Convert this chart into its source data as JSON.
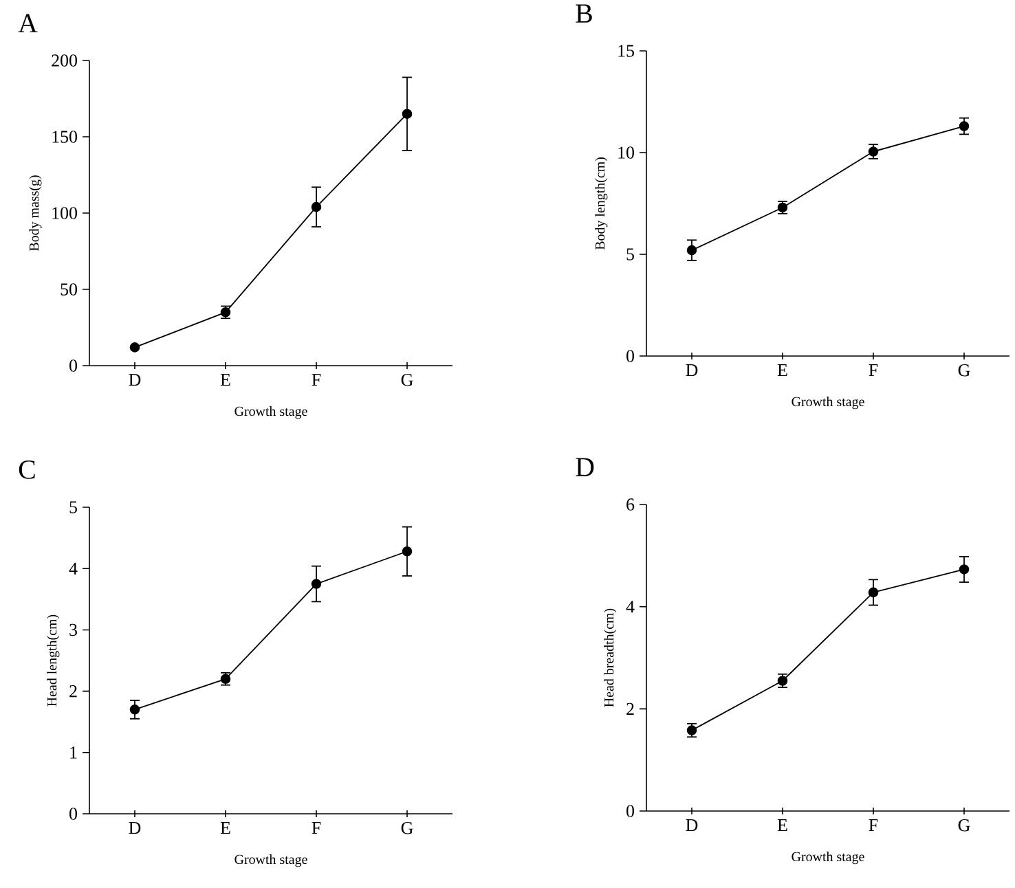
{
  "chart_data": [
    {
      "type": "line",
      "title": "A",
      "xlabel": "Growth stage",
      "ylabel": "Body mass(g)",
      "categories": [
        "D",
        "E",
        "F",
        "G"
      ],
      "values": [
        12,
        35,
        104,
        165
      ],
      "errors": [
        null,
        4,
        13,
        24
      ],
      "color": "#000000",
      "marker": "circle",
      "ylim": [
        0,
        200
      ],
      "yticks": [
        0,
        50,
        100,
        150,
        200
      ]
    },
    {
      "type": "line",
      "title": "B",
      "xlabel": "Growth stage",
      "ylabel": "Body length(cm)",
      "categories": [
        "D",
        "E",
        "F",
        "G"
      ],
      "values": [
        5.2,
        7.3,
        10.05,
        11.3
      ],
      "errors": [
        0.5,
        0.3,
        0.35,
        0.4
      ],
      "color": "#000000",
      "marker": "circle",
      "ylim": [
        0,
        15
      ],
      "yticks": [
        0,
        5,
        10,
        15
      ]
    },
    {
      "type": "line",
      "title": "C",
      "xlabel": "Growth stage",
      "ylabel": "Head length(cm)",
      "categories": [
        "D",
        "E",
        "F",
        "G"
      ],
      "values": [
        1.7,
        2.2,
        3.75,
        4.28
      ],
      "errors": [
        0.15,
        0.1,
        0.29,
        0.4
      ],
      "color": "#000000",
      "marker": "circle",
      "ylim": [
        0,
        5
      ],
      "yticks": [
        0,
        1,
        2,
        3,
        4,
        5
      ]
    },
    {
      "type": "line",
      "title": "D",
      "xlabel": "Growth stage",
      "ylabel": "Head breadth(cm)",
      "categories": [
        "D",
        "E",
        "F",
        "G"
      ],
      "values": [
        1.58,
        2.55,
        4.28,
        4.73
      ],
      "errors": [
        0.13,
        0.13,
        0.25,
        0.25
      ],
      "color": "#000000",
      "marker": "circle",
      "ylim": [
        0,
        6
      ],
      "yticks": [
        0,
        2,
        4,
        6
      ]
    }
  ]
}
